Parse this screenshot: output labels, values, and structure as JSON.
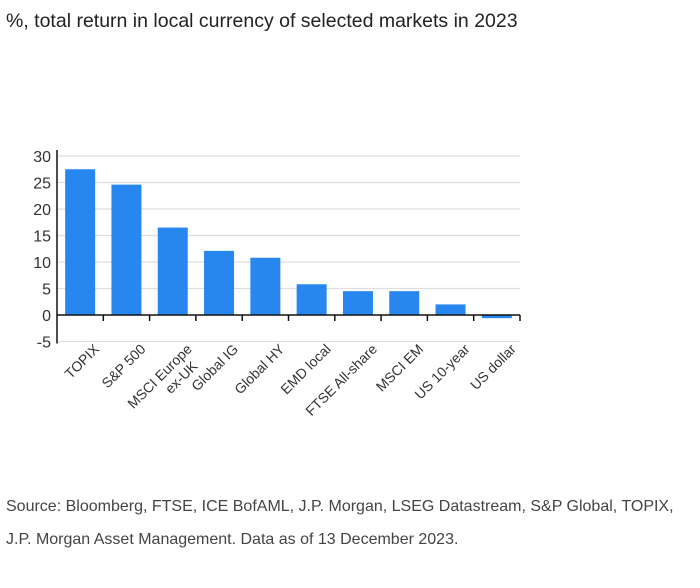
{
  "title": "%, total return in local currency of selected markets in 2023",
  "source": "Source: Bloomberg, FTSE, ICE BofAML, J.P. Morgan, LSEG Datastream, S&P Global, TOPIX, J.P. Morgan Asset Management. Data as of 13 December 2023.",
  "chart_data": {
    "type": "bar",
    "title": "%, total return in local currency of selected markets in 2023",
    "categories": [
      [
        "TOPIX"
      ],
      [
        "S&P 500"
      ],
      [
        "MSCI Europe",
        "ex-UK"
      ],
      [
        "Global IG"
      ],
      [
        "Global HY"
      ],
      [
        "EMD local"
      ],
      [
        "FTSE All-share"
      ],
      [
        "MSCI EM"
      ],
      [
        "US 10-year"
      ],
      [
        "US dollar"
      ]
    ],
    "values": [
      27.5,
      24.6,
      16.5,
      12.1,
      10.8,
      5.8,
      4.5,
      4.5,
      2.0,
      -0.6
    ],
    "ylim": [
      -5,
      30
    ],
    "yticks": [
      30,
      25,
      20,
      15,
      10,
      5,
      0,
      -5
    ],
    "grid": true,
    "color": "#2787ee"
  }
}
